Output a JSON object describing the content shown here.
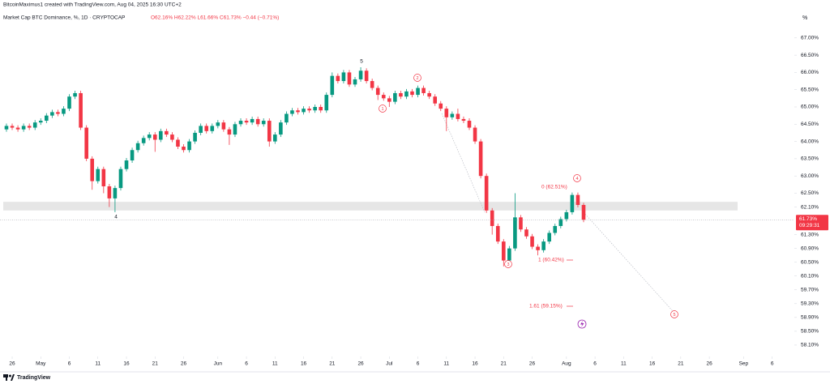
{
  "header": {
    "credit": "BitcoinMaximus1 created with TradingView.com, Aug 04, 2025 16:30 UTC+2",
    "brand": "TradingView"
  },
  "chart_data": {
    "type": "candlestick",
    "title": "Market Cap BTC Dominance, %, 1D · CRYPTOCAP",
    "ohlc_legend": "O62.16% H62.22% L61.66% C61.73% −0.44 (−0.71%)",
    "y_unit": "%",
    "up_color": "#089981",
    "down_color": "#f23645",
    "x": [
      -1,
      0,
      1,
      2,
      3,
      4,
      5,
      6,
      7,
      8,
      9,
      10,
      11,
      12,
      13,
      14,
      15,
      16,
      17,
      18,
      19,
      20,
      21,
      22,
      23,
      24,
      25,
      26,
      27,
      28,
      29,
      30,
      31,
      32,
      33,
      34,
      35,
      36,
      37,
      38,
      39,
      40,
      41,
      42,
      43,
      44,
      45,
      46,
      47,
      48,
      49,
      50,
      51,
      52,
      53,
      54,
      55,
      56,
      57,
      58,
      59,
      60,
      61,
      62,
      63,
      64,
      65,
      66,
      67,
      68,
      69,
      70,
      71,
      72,
      73,
      74,
      75,
      76,
      77,
      78,
      79,
      80,
      81,
      82,
      83,
      84,
      85,
      86,
      87,
      88,
      89,
      90,
      91,
      92,
      93,
      94,
      95,
      96,
      97,
      98,
      99,
      100
    ],
    "open": [
      64.35,
      64.45,
      64.4,
      64.35,
      64.45,
      64.4,
      64.55,
      64.6,
      64.75,
      64.85,
      64.8,
      64.95,
      65.3,
      65.4,
      64.4,
      63.5,
      62.85,
      63.2,
      62.7,
      62.35,
      62.65,
      63.2,
      63.45,
      63.75,
      63.95,
      64.1,
      64.2,
      64.05,
      64.3,
      64.2,
      64.05,
      63.85,
      63.75,
      64.0,
      64.25,
      64.45,
      64.3,
      64.45,
      64.55,
      64.35,
      64.2,
      64.5,
      64.6,
      64.55,
      64.65,
      64.5,
      64.6,
      64.0,
      64.2,
      64.55,
      64.8,
      64.9,
      64.85,
      64.95,
      64.9,
      65.0,
      64.9,
      65.35,
      65.9,
      65.75,
      66.0,
      65.65,
      65.8,
      66.05,
      65.75,
      65.55,
      65.35,
      65.25,
      65.15,
      65.4,
      65.3,
      65.45,
      65.35,
      65.55,
      65.4,
      65.3,
      65.1,
      64.95,
      64.7,
      64.8,
      64.65,
      64.6,
      64.4,
      64.0,
      63.0,
      62.0,
      61.55,
      61.1,
      60.55,
      60.9,
      61.8,
      61.45,
      61.25,
      60.95,
      60.85,
      61.1,
      61.35,
      61.55,
      61.75,
      61.95,
      62.45,
      62.16
    ],
    "high": [
      64.52,
      64.52,
      64.47,
      64.52,
      64.52,
      64.62,
      64.67,
      64.82,
      64.92,
      64.92,
      65.02,
      65.37,
      65.47,
      65.47,
      64.47,
      63.57,
      63.27,
      63.27,
      62.77,
      62.72,
      63.27,
      63.52,
      63.82,
      64.02,
      64.17,
      64.27,
      64.27,
      64.37,
      64.37,
      64.27,
      64.12,
      63.92,
      64.07,
      64.32,
      64.52,
      64.52,
      64.52,
      64.62,
      64.62,
      64.42,
      64.57,
      64.67,
      64.67,
      64.72,
      64.72,
      64.67,
      64.67,
      64.27,
      64.62,
      64.87,
      64.97,
      64.97,
      65.02,
      65.02,
      65.07,
      65.07,
      65.42,
      66.0,
      65.97,
      66.07,
      66.07,
      65.87,
      66.15,
      66.12,
      65.82,
      65.62,
      65.42,
      65.32,
      65.47,
      65.47,
      65.52,
      65.52,
      65.62,
      65.62,
      65.47,
      65.37,
      65.17,
      65.02,
      64.87,
      64.95,
      64.72,
      64.67,
      64.47,
      64.07,
      63.07,
      62.07,
      61.62,
      61.17,
      60.97,
      62.5,
      61.87,
      61.52,
      61.32,
      61.02,
      61.17,
      61.42,
      61.62,
      61.82,
      62.02,
      62.52,
      62.52,
      62.22
    ],
    "low": [
      64.28,
      64.33,
      64.28,
      64.28,
      64.33,
      64.33,
      64.48,
      64.53,
      64.68,
      64.73,
      64.73,
      64.88,
      65.23,
      64.33,
      63.43,
      62.6,
      62.78,
      62.5,
      62.1,
      61.95,
      62.58,
      63.13,
      63.38,
      63.68,
      63.88,
      64.03,
      63.7,
      63.98,
      64.13,
      63.98,
      63.78,
      63.68,
      63.68,
      63.93,
      64.18,
      64.23,
      64.23,
      64.38,
      64.28,
      63.9,
      64.13,
      64.43,
      64.48,
      64.48,
      64.43,
      64.43,
      63.85,
      63.93,
      64.13,
      64.48,
      64.73,
      64.78,
      64.78,
      64.83,
      64.83,
      64.83,
      64.83,
      65.28,
      65.68,
      65.68,
      65.58,
      65.58,
      65.73,
      65.68,
      65.48,
      65.2,
      65.18,
      65.0,
      65.08,
      65.23,
      65.23,
      65.28,
      65.28,
      65.33,
      65.23,
      65.03,
      64.88,
      64.3,
      64.63,
      64.58,
      64.53,
      64.33,
      63.93,
      62.93,
      61.93,
      61.3,
      61.03,
      60.38,
      60.48,
      60.83,
      61.38,
      61.18,
      60.88,
      60.7,
      60.78,
      61.03,
      61.28,
      61.48,
      61.68,
      61.88,
      62.09,
      61.66
    ],
    "close": [
      64.45,
      64.4,
      64.35,
      64.45,
      64.4,
      64.55,
      64.6,
      64.75,
      64.85,
      64.8,
      64.95,
      65.3,
      65.4,
      64.4,
      63.5,
      62.85,
      63.2,
      62.7,
      62.35,
      62.65,
      63.2,
      63.45,
      63.75,
      63.95,
      64.1,
      64.2,
      64.05,
      64.3,
      64.2,
      64.05,
      63.85,
      63.75,
      64.0,
      64.25,
      64.45,
      64.3,
      64.45,
      64.55,
      64.35,
      64.2,
      64.5,
      64.6,
      64.55,
      64.65,
      64.5,
      64.6,
      64.0,
      64.2,
      64.55,
      64.8,
      64.9,
      64.85,
      64.95,
      64.9,
      65.0,
      64.9,
      65.35,
      65.9,
      65.75,
      66.0,
      65.65,
      65.8,
      66.05,
      65.75,
      65.55,
      65.35,
      65.25,
      65.15,
      65.4,
      65.3,
      65.45,
      65.35,
      65.55,
      65.4,
      65.3,
      65.1,
      64.95,
      64.7,
      64.8,
      64.65,
      64.6,
      64.4,
      64.0,
      63.0,
      62.0,
      61.55,
      61.1,
      60.55,
      60.9,
      61.8,
      61.45,
      61.25,
      60.95,
      60.85,
      61.1,
      61.35,
      61.55,
      61.75,
      61.95,
      62.45,
      62.16,
      61.73
    ],
    "xlim": [
      -2.13,
      136.88
    ],
    "ylim": [
      57.77,
      67.77
    ],
    "xticks": [
      {
        "value": 0,
        "label": "26"
      },
      {
        "value": 5,
        "label": "May"
      },
      {
        "value": 10,
        "label": "6"
      },
      {
        "value": 15,
        "label": "11"
      },
      {
        "value": 20,
        "label": "16"
      },
      {
        "value": 25,
        "label": "21"
      },
      {
        "value": 30,
        "label": "26"
      },
      {
        "value": 36,
        "label": "Jun"
      },
      {
        "value": 41,
        "label": "6"
      },
      {
        "value": 46,
        "label": "11"
      },
      {
        "value": 51,
        "label": "16"
      },
      {
        "value": 56,
        "label": "21"
      },
      {
        "value": 61,
        "label": "26"
      },
      {
        "value": 66,
        "label": "Jul"
      },
      {
        "value": 71,
        "label": "6"
      },
      {
        "value": 76,
        "label": "11"
      },
      {
        "value": 81,
        "label": "16"
      },
      {
        "value": 86,
        "label": "21"
      },
      {
        "value": 91,
        "label": "26"
      },
      {
        "value": 97,
        "label": "Aug"
      },
      {
        "value": 102,
        "label": "6"
      },
      {
        "value": 107,
        "label": "11"
      },
      {
        "value": 112,
        "label": "16"
      },
      {
        "value": 117,
        "label": "21"
      },
      {
        "value": 122,
        "label": "26"
      },
      {
        "value": 128,
        "label": "Sep"
      },
      {
        "value": 133,
        "label": "6"
      }
    ],
    "yticks": [
      {
        "value": 67.0,
        "label": "67.00%"
      },
      {
        "value": 66.5,
        "label": "66.50%"
      },
      {
        "value": 66.0,
        "label": "66.00%"
      },
      {
        "value": 65.5,
        "label": "65.50%"
      },
      {
        "value": 65.0,
        "label": "65.00%"
      },
      {
        "value": 64.5,
        "label": "64.50%"
      },
      {
        "value": 64.0,
        "label": "64.00%"
      },
      {
        "value": 63.5,
        "label": "63.50%"
      },
      {
        "value": 63.0,
        "label": "63.00%"
      },
      {
        "value": 62.5,
        "label": "62.50%"
      },
      {
        "value": 62.1,
        "label": "62.10%"
      },
      {
        "value": 61.3,
        "label": "61.30%"
      },
      {
        "value": 60.9,
        "label": "60.90%"
      },
      {
        "value": 60.5,
        "label": "60.50%"
      },
      {
        "value": 60.1,
        "label": "60.10%"
      },
      {
        "value": 59.7,
        "label": "59.70%"
      },
      {
        "value": 59.3,
        "label": "59.30%"
      },
      {
        "value": 58.9,
        "label": "58.90%"
      },
      {
        "value": 58.5,
        "label": "58.50%"
      },
      {
        "value": 58.1,
        "label": "58.10%"
      }
    ],
    "grid": false,
    "price_label": {
      "value": 61.73,
      "label": "61.73%"
    },
    "countdown": "09:29:31",
    "zone": [
      62.0,
      62.25
    ],
    "wave_labels": [
      "5",
      "4"
    ],
    "wave_circles": [
      "1",
      "2",
      "3",
      "4",
      "5"
    ],
    "fib_labels": [
      "0 (62.51%)",
      "1 (60.42%)",
      "1.61 (59.15%)"
    ]
  }
}
